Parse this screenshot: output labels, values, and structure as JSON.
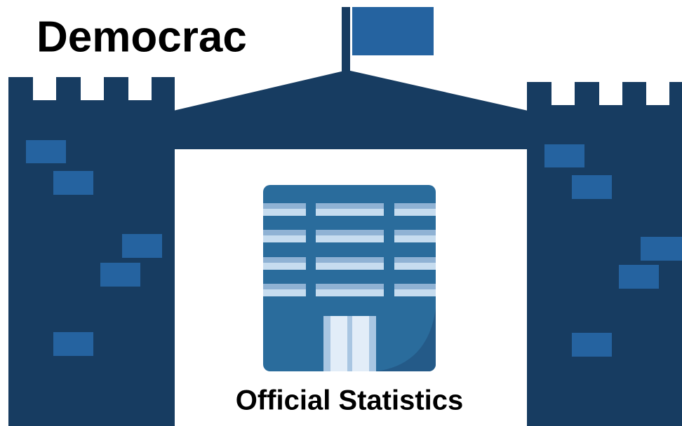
{
  "title": "Democrac",
  "caption": "Official Statistics"
}
